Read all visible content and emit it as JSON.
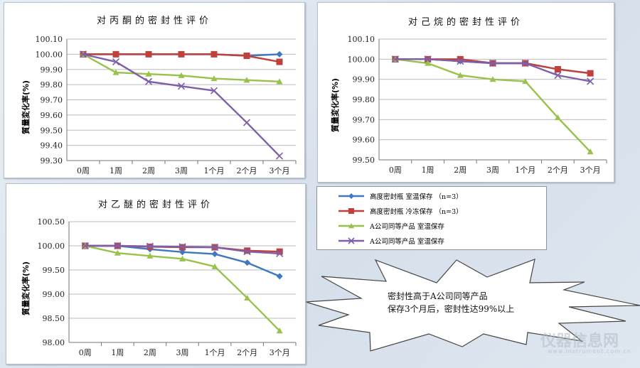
{
  "legend": [
    {
      "name": "高度密封瓶 室温保存 （n=3）",
      "color": "#3e78c0",
      "marker": "diamond"
    },
    {
      "name": "高度密封瓶 冷冻保存 （n=3）",
      "color": "#c0403c",
      "marker": "square"
    },
    {
      "name": "A公司同等产品 室温保存",
      "color": "#98c24a",
      "marker": "triangle"
    },
    {
      "name": "A公司同等产品 室温保存",
      "color": "#7e5fa8",
      "marker": "x"
    }
  ],
  "callout": {
    "line1": "密封性高于A公司同等产品",
    "line2": "保存3个月后，密封性达99%以上"
  },
  "watermark": {
    "text": "仪器信息网",
    "url": "www.instrument.com.cn"
  },
  "chart_data": [
    {
      "type": "line",
      "title": "对丙酮的密封性评价",
      "ylabel": "質量変化率(%)",
      "xlabel": "",
      "categories": [
        "0周",
        "1周",
        "2周",
        "3周",
        "1个月",
        "2个月",
        "3个月"
      ],
      "ylim": [
        99.3,
        100.1
      ],
      "yticks": [
        "99.30",
        "99.40",
        "99.50",
        "99.60",
        "99.70",
        "99.80",
        "99.90",
        "100.00",
        "100.10"
      ],
      "grid": true,
      "series": [
        {
          "name": "高度密封瓶 室温保存 （n=3）",
          "values": [
            100.0,
            100.0,
            100.0,
            100.0,
            100.0,
            99.99,
            100.0
          ]
        },
        {
          "name": "高度密封瓶 冷冻保存 （n=3）",
          "values": [
            100.0,
            100.0,
            100.0,
            100.0,
            100.0,
            99.99,
            99.95
          ]
        },
        {
          "name": "A公司同等产品 室温保存",
          "values": [
            100.0,
            99.88,
            99.87,
            99.86,
            99.84,
            99.83,
            99.82
          ]
        },
        {
          "name": "A公司同等产品 室温保存",
          "values": [
            100.0,
            99.95,
            99.82,
            99.79,
            99.76,
            99.55,
            99.33
          ]
        }
      ]
    },
    {
      "type": "line",
      "title": "对己烷的密封性评价",
      "ylabel": "質量変化率(%)",
      "xlabel": "",
      "categories": [
        "0周",
        "1周",
        "2周",
        "3周",
        "1个月",
        "2个月",
        "3个月"
      ],
      "ylim": [
        99.5,
        100.1
      ],
      "yticks": [
        "99.50",
        "99.60",
        "99.70",
        "99.80",
        "99.90",
        "100.00",
        "100.10"
      ],
      "grid": true,
      "series": [
        {
          "name": "高度密封瓶 室温保存 （n=3）",
          "values": [
            100.0,
            100.0,
            99.99,
            99.98,
            99.98,
            99.95,
            99.93
          ]
        },
        {
          "name": "高度密封瓶 冷冻保存 （n=3）",
          "values": [
            100.0,
            100.0,
            100.0,
            99.98,
            99.98,
            99.95,
            99.93
          ]
        },
        {
          "name": "A公司同等产品 室温保存",
          "values": [
            100.0,
            99.98,
            99.92,
            99.9,
            99.89,
            99.71,
            99.54
          ]
        },
        {
          "name": "A公司同等产品 室温保存",
          "values": [
            100.0,
            100.0,
            99.99,
            99.98,
            99.98,
            99.92,
            99.89
          ]
        }
      ]
    },
    {
      "type": "line",
      "title": "对乙醚的密封性评价",
      "ylabel": "質量変化率(%)",
      "xlabel": "",
      "categories": [
        "0周",
        "1周",
        "2周",
        "3周",
        "1个月",
        "2个月",
        "3个月"
      ],
      "ylim": [
        98.0,
        100.5
      ],
      "yticks": [
        "98.00",
        "98.50",
        "99.00",
        "99.50",
        "100.00",
        "100.50"
      ],
      "grid": true,
      "series": [
        {
          "name": "高度密封瓶 室温保存 （n=3）",
          "values": [
            100.0,
            100.0,
            99.93,
            99.87,
            99.83,
            99.65,
            99.37
          ]
        },
        {
          "name": "高度密封瓶 冷冻保存 （n=3）",
          "values": [
            100.0,
            100.0,
            99.98,
            99.97,
            99.97,
            99.9,
            99.88
          ]
        },
        {
          "name": "A公司同等产品 室温保存",
          "values": [
            100.0,
            99.85,
            99.79,
            99.73,
            99.57,
            98.92,
            98.24
          ]
        },
        {
          "name": "A公司同等产品 室温保存",
          "values": [
            100.0,
            100.0,
            99.99,
            99.98,
            99.97,
            99.88,
            99.84
          ]
        }
      ]
    }
  ]
}
